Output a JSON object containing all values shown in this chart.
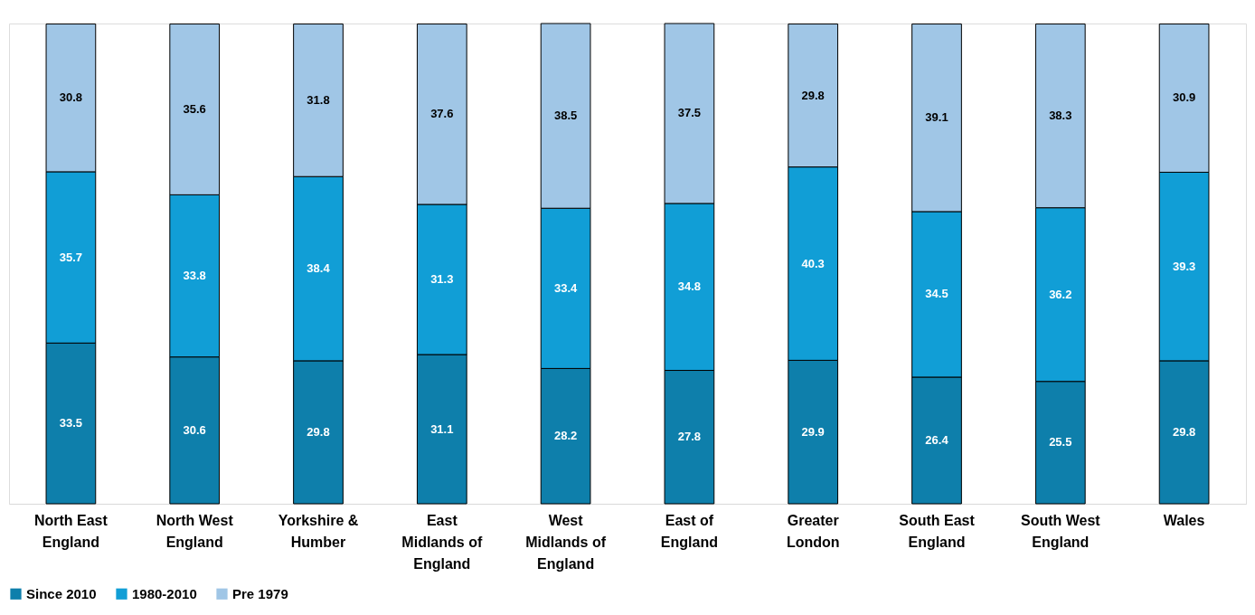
{
  "chart_data": {
    "type": "bar",
    "stacked": true,
    "data_labels": true,
    "legend": "bottom",
    "grid": false,
    "categories": [
      "North East England",
      "North West England",
      "Yorkshire & Humber",
      "East Midlands of England",
      "West Midlands of England",
      "East of England",
      "Greater London",
      "South East England",
      "South West England",
      "Wales"
    ],
    "series": [
      {
        "name": "Since 2010",
        "color": "#0e7fab",
        "values": [
          33.5,
          30.6,
          29.8,
          31.1,
          28.2,
          27.8,
          29.9,
          26.4,
          25.5,
          29.8
        ]
      },
      {
        "name": "1980-2010",
        "color": "#119ed6",
        "values": [
          35.7,
          33.8,
          38.4,
          31.3,
          33.4,
          34.8,
          40.3,
          34.5,
          36.2,
          39.3
        ]
      },
      {
        "name": "Pre 1979",
        "color": "#a0c6e6",
        "values": [
          30.8,
          35.6,
          31.8,
          37.6,
          38.5,
          37.5,
          29.8,
          39.1,
          38.3,
          30.9
        ]
      }
    ]
  }
}
